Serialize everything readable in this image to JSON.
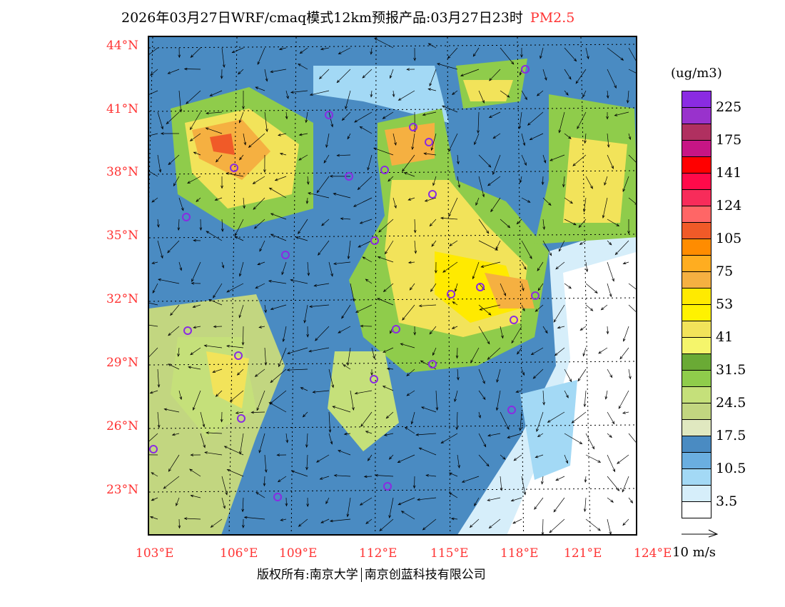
{
  "title": {
    "text": "2026年03月27日WRF/cmaq模式12km预报产品:03月27日23时",
    "variable": "PM2.5"
  },
  "map": {
    "lat_labels": [
      "44°N",
      "41°N",
      "38°N",
      "35°N",
      "32°N",
      "29°N",
      "26°N",
      "23°N"
    ],
    "lon_labels": [
      "103°E",
      "106°E",
      "109°E",
      "112°E",
      "115°E",
      "118°E",
      "121°E",
      "124°E"
    ],
    "colors": {
      "ocean": "#ffffff",
      "base": "#4a8bc2",
      "land_text": "#000000",
      "station": "#8a2be2"
    }
  },
  "colorbar": {
    "unit": "(ug/m3)",
    "colors": [
      "#8a2be2",
      "#9932cc",
      "#b03060",
      "#c71585",
      "#ff0000",
      "#ff0a4a",
      "#f72c5a",
      "#ff6666",
      "#f05a28",
      "#ff8c00",
      "#ffad20",
      "#f5b041",
      "#ffea00",
      "#fff200",
      "#f2e35a",
      "#f5f56b",
      "#6aaa35",
      "#8fcc4b",
      "#c5e07a",
      "#c2d680",
      "#e0e8c0",
      "#4a8bc2",
      "#6aaee0",
      "#a3d9f5",
      "#d6eefa",
      "#ffffff"
    ],
    "labels": [
      "225",
      "175",
      "141",
      "124",
      "105",
      "75",
      "53",
      "41",
      "31.5",
      "24.5",
      "17.5",
      "10.5",
      "3.5"
    ]
  },
  "wind_reference": "10 m/s",
  "footer": {
    "left": "版权所有:南京大学",
    "right": "南京创蓝科技有限公司"
  }
}
